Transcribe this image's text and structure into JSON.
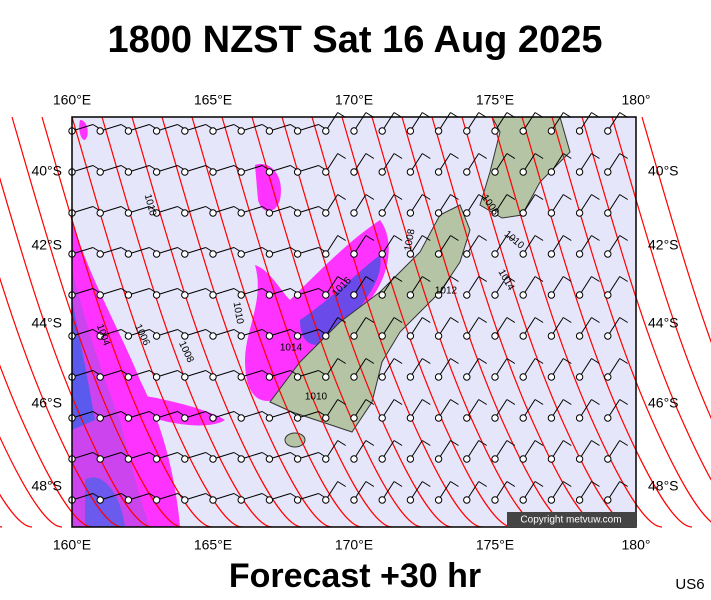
{
  "header": {
    "title": "1800 NZST Sat 16 Aug 2025"
  },
  "map": {
    "lon_labels": [
      "160°E",
      "165°E",
      "170°E",
      "175°E",
      "180°"
    ],
    "lat_labels": [
      "40°S",
      "42°S",
      "44°S",
      "46°S",
      "48°S"
    ],
    "isobar_labels": [
      "1010",
      "1004",
      "1006",
      "1008",
      "1010",
      "1016",
      "1014",
      "1010",
      "1008",
      "1008",
      "1010",
      "1014",
      "1012"
    ],
    "copyright": "Copyright metvuw.com"
  },
  "footer": {
    "forecast": "Forecast +30 hr",
    "code": "US6"
  }
}
